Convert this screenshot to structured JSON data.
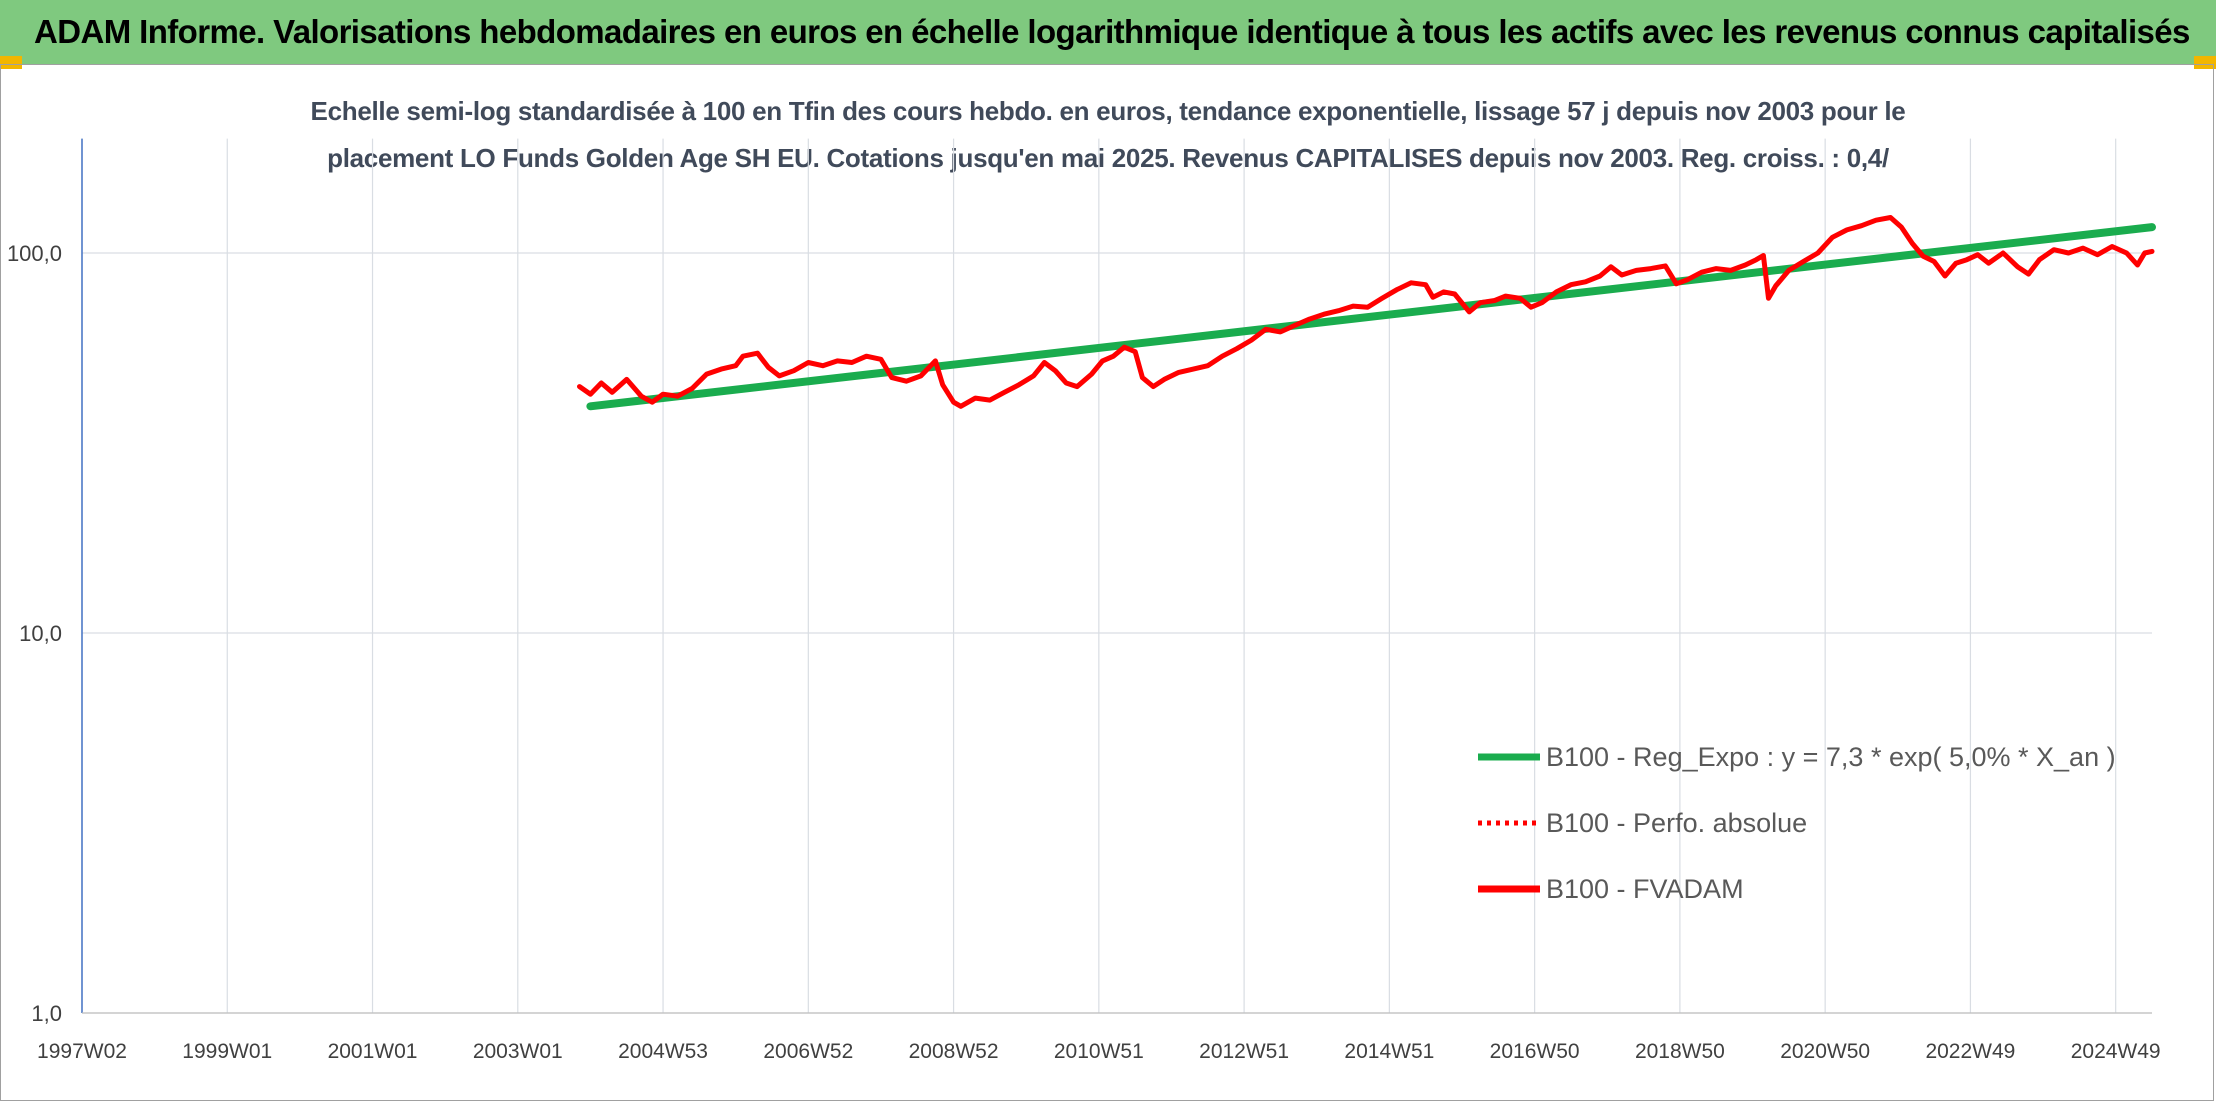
{
  "header": {
    "title": "ADAM Informe. Valorisations hebdomadaires en euros en échelle logarithmique identique à tous les actifs avec les revenus connus capitalisés",
    "band_color": "#7fc97f",
    "corner_mark_color": "#f2b600"
  },
  "chart_data": {
    "type": "line",
    "title_lines": [
      "Echelle semi-log standardisée à 100 en Tfin des cours hebdo. en euros, tendance exponentielle, lissage 57 j depuis nov 2003 pour le",
      "placement LO Funds Golden Age SH EU. Cotations jusqu'en mai 2025. Revenus CAPITALISES depuis nov 2003. Reg. croiss. : 0,4/"
    ],
    "y_scale": "log",
    "ylim": [
      1,
      200
    ],
    "y_ticks": [
      {
        "value": 1,
        "label": "1,0"
      },
      {
        "value": 10,
        "label": "10,0"
      },
      {
        "value": 100,
        "label": "100,0"
      }
    ],
    "xlim": [
      1997.0,
      2025.5
    ],
    "x_ticks": [
      {
        "x": 1997.0,
        "label": "1997W02"
      },
      {
        "x": 1999.0,
        "label": "1999W01"
      },
      {
        "x": 2001.0,
        "label": "2001W01"
      },
      {
        "x": 2003.0,
        "label": "2003W01"
      },
      {
        "x": 2005.0,
        "label": "2004W53"
      },
      {
        "x": 2007.0,
        "label": "2006W52"
      },
      {
        "x": 2009.0,
        "label": "2008W52"
      },
      {
        "x": 2011.0,
        "label": "2010W51"
      },
      {
        "x": 2013.0,
        "label": "2012W51"
      },
      {
        "x": 2015.0,
        "label": "2014W51"
      },
      {
        "x": 2017.0,
        "label": "2016W50"
      },
      {
        "x": 2019.0,
        "label": "2018W50"
      },
      {
        "x": 2021.0,
        "label": "2020W50"
      },
      {
        "x": 2023.0,
        "label": "2022W49"
      },
      {
        "x": 2025.0,
        "label": "2024W49"
      }
    ],
    "vertical_grid": true,
    "horizontal_grid": true,
    "legend_position": "bottom-right",
    "series": [
      {
        "name": "B100 - Reg_Expo : y = 7,3 * exp( 5,0% *  X_an )",
        "color": "#1aac4e",
        "style": "solid",
        "points": [
          [
            2004.0,
            39.5
          ],
          [
            2025.5,
            117.0
          ]
        ]
      },
      {
        "name": "B100 - Perfo. absolue",
        "color": "#ff0000",
        "style": "dotted",
        "points": []
      },
      {
        "name": "B100 - FVADAM",
        "color": "#ff0000",
        "style": "solid",
        "points": [
          [
            2003.85,
            44.5
          ],
          [
            2004.0,
            42.5
          ],
          [
            2004.15,
            45.5
          ],
          [
            2004.3,
            43.0
          ],
          [
            2004.5,
            46.5
          ],
          [
            2004.7,
            42.0
          ],
          [
            2004.85,
            40.5
          ],
          [
            2005.0,
            42.5
          ],
          [
            2005.2,
            42.0
          ],
          [
            2005.4,
            44.0
          ],
          [
            2005.6,
            48.0
          ],
          [
            2005.8,
            49.5
          ],
          [
            2006.0,
            50.5
          ],
          [
            2006.1,
            53.5
          ],
          [
            2006.3,
            54.5
          ],
          [
            2006.45,
            50.0
          ],
          [
            2006.6,
            47.5
          ],
          [
            2006.8,
            49.0
          ],
          [
            2007.0,
            51.5
          ],
          [
            2007.2,
            50.5
          ],
          [
            2007.4,
            52.0
          ],
          [
            2007.6,
            51.5
          ],
          [
            2007.8,
            53.5
          ],
          [
            2008.0,
            52.5
          ],
          [
            2008.15,
            47.0
          ],
          [
            2008.35,
            46.0
          ],
          [
            2008.55,
            47.5
          ],
          [
            2008.75,
            52.0
          ],
          [
            2008.85,
            45.0
          ],
          [
            2009.0,
            40.5
          ],
          [
            2009.1,
            39.5
          ],
          [
            2009.3,
            41.5
          ],
          [
            2009.5,
            41.0
          ],
          [
            2009.7,
            43.0
          ],
          [
            2009.9,
            45.0
          ],
          [
            2010.1,
            47.5
          ],
          [
            2010.25,
            51.5
          ],
          [
            2010.4,
            49.0
          ],
          [
            2010.55,
            45.5
          ],
          [
            2010.7,
            44.5
          ],
          [
            2010.9,
            48.0
          ],
          [
            2011.05,
            52.0
          ],
          [
            2011.2,
            53.5
          ],
          [
            2011.35,
            56.5
          ],
          [
            2011.5,
            55.0
          ],
          [
            2011.6,
            47.0
          ],
          [
            2011.75,
            44.5
          ],
          [
            2011.9,
            46.5
          ],
          [
            2012.1,
            48.5
          ],
          [
            2012.3,
            49.5
          ],
          [
            2012.5,
            50.5
          ],
          [
            2012.7,
            53.5
          ],
          [
            2012.9,
            56.0
          ],
          [
            2013.1,
            59.0
          ],
          [
            2013.3,
            63.0
          ],
          [
            2013.5,
            62.0
          ],
          [
            2013.7,
            64.5
          ],
          [
            2013.9,
            67.0
          ],
          [
            2014.1,
            69.0
          ],
          [
            2014.3,
            70.5
          ],
          [
            2014.5,
            72.5
          ],
          [
            2014.7,
            72.0
          ],
          [
            2014.9,
            76.0
          ],
          [
            2015.1,
            80.0
          ],
          [
            2015.3,
            83.5
          ],
          [
            2015.5,
            82.5
          ],
          [
            2015.6,
            76.5
          ],
          [
            2015.75,
            79.0
          ],
          [
            2015.9,
            78.0
          ],
          [
            2016.1,
            70.0
          ],
          [
            2016.25,
            74.0
          ],
          [
            2016.45,
            75.0
          ],
          [
            2016.6,
            77.0
          ],
          [
            2016.8,
            76.0
          ],
          [
            2016.95,
            72.0
          ],
          [
            2017.1,
            74.0
          ],
          [
            2017.3,
            79.0
          ],
          [
            2017.5,
            82.5
          ],
          [
            2017.7,
            84.0
          ],
          [
            2017.9,
            87.0
          ],
          [
            2018.05,
            92.0
          ],
          [
            2018.2,
            87.5
          ],
          [
            2018.4,
            90.0
          ],
          [
            2018.6,
            91.0
          ],
          [
            2018.8,
            92.5
          ],
          [
            2018.95,
            83.0
          ],
          [
            2019.1,
            85.0
          ],
          [
            2019.3,
            89.0
          ],
          [
            2019.5,
            91.0
          ],
          [
            2019.7,
            90.0
          ],
          [
            2019.9,
            93.0
          ],
          [
            2020.05,
            96.0
          ],
          [
            2020.15,
            98.5
          ],
          [
            2020.22,
            76.0
          ],
          [
            2020.32,
            82.0
          ],
          [
            2020.5,
            90.0
          ],
          [
            2020.7,
            95.0
          ],
          [
            2020.9,
            100.0
          ],
          [
            2021.1,
            110.0
          ],
          [
            2021.3,
            115.0
          ],
          [
            2021.5,
            118.0
          ],
          [
            2021.7,
            122.0
          ],
          [
            2021.9,
            124.0
          ],
          [
            2022.05,
            117.0
          ],
          [
            2022.2,
            106.0
          ],
          [
            2022.35,
            98.0
          ],
          [
            2022.5,
            95.0
          ],
          [
            2022.65,
            87.0
          ],
          [
            2022.8,
            94.0
          ],
          [
            2022.95,
            96.0
          ],
          [
            2023.1,
            99.0
          ],
          [
            2023.25,
            94.0
          ],
          [
            2023.45,
            100.0
          ],
          [
            2023.65,
            92.0
          ],
          [
            2023.8,
            88.0
          ],
          [
            2023.95,
            96.0
          ],
          [
            2024.15,
            102.0
          ],
          [
            2024.35,
            100.0
          ],
          [
            2024.55,
            103.0
          ],
          [
            2024.75,
            99.0
          ],
          [
            2024.95,
            104.0
          ],
          [
            2025.15,
            100.0
          ],
          [
            2025.3,
            93.0
          ],
          [
            2025.4,
            100.0
          ],
          [
            2025.5,
            101.0
          ]
        ]
      }
    ]
  }
}
